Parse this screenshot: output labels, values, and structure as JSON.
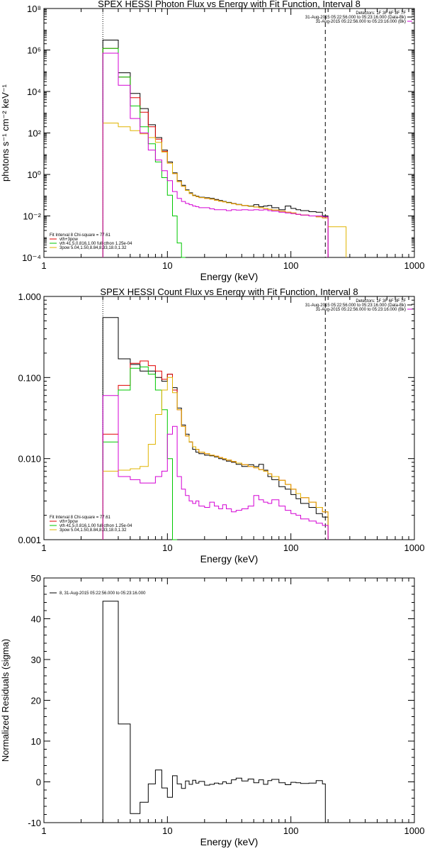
{
  "chart_data": [
    {
      "type": "line",
      "title": "SPEX HESSI Photon Flux vs Energy with Fit Function, Interval 8",
      "xlabel": "Energy (keV)",
      "ylabel": "photons s⁻¹ cm⁻² keV⁻¹",
      "xscale": "log",
      "yscale": "log",
      "xlim": [
        1,
        1000
      ],
      "ylim": [
        0.0001,
        100000000
      ],
      "x_ticks": [
        "1",
        "10",
        "100",
        "1000"
      ],
      "y_ticks": [
        "10⁻⁴",
        "10⁻²",
        "10⁰",
        "10²",
        "10⁴",
        "10⁶",
        "10⁸"
      ],
      "info_lines": [
        {
          "text": "Detectors: 1F 3F 6F 8F 7F",
          "color": "#000000"
        },
        {
          "text": "31-Aug-2015 05:22:56.000 to 05:23:16.000 (Data-Bk)",
          "color": "#000000"
        },
        {
          "text": "31-Aug-2015 05:22:56.000 to 05:23:16.000 (Bk)",
          "color": "#d400d4"
        }
      ],
      "legend": [
        {
          "text": "Fit Interval 8   Chi-square = 77.61",
          "color": "#000000"
        },
        {
          "text": "vth+3pow",
          "color": "#e00000"
        },
        {
          "text": "vth 41.5,0.816,1.00  full cthon 1.25e-04",
          "color": "#00c800"
        },
        {
          "text": "3pow 5.04,1.50,8.84,8.33,18.0,1.32",
          "color": "#e0b400"
        }
      ],
      "vlines": {
        "dotted": 3,
        "dashed": 190
      },
      "edges": [
        3,
        4,
        5,
        6,
        7,
        8,
        9,
        10,
        11,
        12,
        13,
        14,
        15,
        16,
        17,
        18,
        20,
        22,
        24,
        26,
        28,
        30,
        33,
        36,
        40,
        45,
        50,
        55,
        60,
        65,
        70,
        80,
        90,
        100,
        110,
        120,
        140,
        160,
        180,
        200,
        280
      ],
      "series": [
        {
          "name": "Data-Bk",
          "color": "#000000",
          "values": [
            3000000,
            80000,
            8000,
            1500,
            250,
            60,
            15,
            4,
            1.2,
            0.5,
            0.3,
            0.18,
            0.13,
            0.1,
            0.09,
            0.08,
            0.075,
            0.07,
            0.062,
            0.055,
            0.05,
            0.045,
            0.04,
            0.036,
            0.032,
            0.03,
            0.035,
            0.028,
            0.03,
            0.032,
            0.025,
            0.02,
            0.03,
            0.023,
            0.02,
            0.018,
            0.016,
            0.015,
            0.01,
            null
          ]
        },
        {
          "name": "vth+3pow",
          "color": "#e00000",
          "values": [
            1200000,
            50000,
            5000,
            1000,
            200,
            50,
            13,
            3.5,
            1.1,
            0.45,
            0.27,
            0.17,
            0.12,
            0.095,
            0.085,
            0.077,
            0.07,
            0.065,
            0.058,
            0.052,
            0.048,
            0.043,
            0.039,
            0.035,
            0.032,
            0.029,
            0.027,
            0.025,
            0.023,
            0.021,
            0.019,
            0.017,
            0.015,
            0.014,
            0.012,
            0.011,
            0.01,
            0.009,
            0.008,
            null
          ]
        },
        {
          "name": "vth",
          "color": "#00c800",
          "values": [
            1200000,
            50000,
            2000,
            200,
            30,
            4,
            0.7,
            0.1,
            0.01,
            0.0005,
            0.0001,
            null,
            null,
            null,
            null,
            null,
            null,
            null,
            null,
            null,
            null,
            null,
            null,
            null,
            null,
            null,
            null,
            null,
            null,
            null,
            null,
            null,
            null,
            null,
            null,
            null,
            null,
            null,
            null,
            null
          ]
        },
        {
          "name": "3pow",
          "color": "#e0b400",
          "values": [
            300,
            200,
            130,
            90,
            60,
            35,
            12,
            3.5,
            1.1,
            0.45,
            0.27,
            0.17,
            0.12,
            0.095,
            0.085,
            0.077,
            0.07,
            0.065,
            0.058,
            0.052,
            0.048,
            0.043,
            0.039,
            0.035,
            0.032,
            0.029,
            0.027,
            0.025,
            0.023,
            0.021,
            0.019,
            0.017,
            0.015,
            0.014,
            0.012,
            0.011,
            0.01,
            0.009,
            0.008,
            0.003
          ]
        },
        {
          "name": "Bk",
          "color": "#d400d4",
          "values": [
            700000,
            20000,
            500,
            100,
            15,
            5,
            1.5,
            0.5,
            0.15,
            0.07,
            0.05,
            0.04,
            0.035,
            0.03,
            0.028,
            0.025,
            0.025,
            0.022,
            0.02,
            0.02,
            0.02,
            0.018,
            0.02,
            0.019,
            0.02,
            0.019,
            0.02,
            0.019,
            0.02,
            0.018,
            0.017,
            0.015,
            0.014,
            0.013,
            0.012,
            0.011,
            0.01,
            0.01,
            0.009,
            null
          ]
        }
      ]
    },
    {
      "type": "line",
      "title": "SPEX HESSI Count Flux vs Energy with Fit Function, Interval 8",
      "xlabel": "Energy (keV)",
      "ylabel": "",
      "xscale": "log",
      "yscale": "log",
      "xlim": [
        1,
        1000
      ],
      "ylim": [
        0.001,
        1
      ],
      "x_ticks": [
        "1",
        "10",
        "100",
        "1000"
      ],
      "y_ticks": [
        "0.001",
        "0.010",
        "0.100",
        "1.000"
      ],
      "info_lines": [
        {
          "text": "Detectors: 1F 3F 6F 8F 7F",
          "color": "#000000"
        },
        {
          "text": "31-Aug-2015 05:22:56.000 to 05:23:16.000 (Data-Bk)",
          "color": "#000000"
        },
        {
          "text": "31-Aug-2015 05:22:56.000 to 05:23:16.000 (Bk)",
          "color": "#d400d4"
        }
      ],
      "legend": [
        {
          "text": "Fit Interval 8   Chi-square = 77.61",
          "color": "#000000"
        },
        {
          "text": "vth+3pow",
          "color": "#e00000"
        },
        {
          "text": "vth 41.5,0.816,1.00  full cthon 1.25e-04",
          "color": "#00c800"
        },
        {
          "text": "3pow 5.04,1.50,8.84,8.33,18.0,1.32",
          "color": "#e0b400"
        }
      ],
      "vlines": {
        "dotted": 3,
        "dashed": 190
      },
      "edges": [
        3,
        4,
        5,
        6,
        7,
        8,
        9,
        10,
        11,
        12,
        13,
        14,
        15,
        16,
        17,
        18,
        20,
        22,
        24,
        26,
        28,
        30,
        33,
        36,
        40,
        45,
        50,
        55,
        60,
        65,
        70,
        80,
        90,
        100,
        110,
        120,
        140,
        160,
        180,
        200
      ],
      "series": [
        {
          "name": "Data-Bk",
          "color": "#000000",
          "values": [
            0.55,
            0.17,
            0.145,
            0.12,
            0.12,
            0.1,
            0.09,
            0.11,
            0.075,
            0.042,
            0.026,
            0.02,
            0.016,
            0.013,
            0.012,
            0.0115,
            0.011,
            0.0108,
            0.0105,
            0.01,
            0.0097,
            0.0093,
            0.009,
            0.0085,
            0.008,
            0.0084,
            0.008,
            0.0085,
            0.0072,
            0.006,
            0.0055,
            0.0045,
            0.0042,
            0.0036,
            0.0032,
            0.0028,
            0.0025,
            0.0021,
            0.0019
          ]
        },
        {
          "name": "vth+3pow",
          "color": "#e00000",
          "values": [
            0.02,
            0.08,
            0.15,
            0.16,
            0.14,
            0.12,
            0.095,
            0.11,
            0.07,
            0.04,
            0.025,
            0.019,
            0.016,
            0.014,
            0.013,
            0.012,
            0.0115,
            0.011,
            0.0107,
            0.0103,
            0.01,
            0.0096,
            0.0092,
            0.0088,
            0.0084,
            0.008,
            0.0077,
            0.0073,
            0.007,
            0.0065,
            0.006,
            0.0054,
            0.0048,
            0.0042,
            0.0037,
            0.0033,
            0.0029,
            0.0025,
            0.0022
          ]
        },
        {
          "name": "vth",
          "color": "#00c800",
          "values": [
            0.016,
            0.07,
            0.13,
            0.135,
            0.11,
            0.07,
            0.04,
            0.01,
            0.001,
            null,
            null,
            null,
            null,
            null,
            null,
            null,
            null,
            null,
            null,
            null,
            null,
            null,
            null,
            null,
            null,
            null,
            null,
            null,
            null,
            null,
            null,
            null,
            null,
            null,
            null,
            null,
            null,
            null,
            null
          ]
        },
        {
          "name": "3pow",
          "color": "#e0b400",
          "values": [
            0.007,
            0.0072,
            0.0075,
            0.008,
            0.015,
            0.035,
            0.07,
            0.1,
            0.065,
            0.04,
            0.025,
            0.019,
            0.016,
            0.014,
            0.013,
            0.012,
            0.0115,
            0.011,
            0.0107,
            0.0103,
            0.01,
            0.0096,
            0.0092,
            0.0088,
            0.0084,
            0.008,
            0.0077,
            0.0073,
            0.007,
            0.0065,
            0.006,
            0.0054,
            0.0048,
            0.0042,
            0.0037,
            0.0033,
            0.0029,
            0.0025,
            0.0022,
            0.0012
          ]
        },
        {
          "name": "Bk",
          "color": "#d400d4",
          "values": [
            0.06,
            0.006,
            0.0055,
            0.005,
            0.005,
            0.006,
            0.007,
            0.02,
            0.025,
            0.006,
            0.0042,
            0.0035,
            0.003,
            0.0028,
            0.003,
            0.0026,
            0.0025,
            0.0029,
            0.0026,
            0.0024,
            0.0027,
            0.0024,
            0.0022,
            0.0023,
            0.0024,
            0.0026,
            0.0035,
            0.0031,
            0.0029,
            0.0028,
            0.0031,
            0.0026,
            0.0023,
            0.0021,
            0.002,
            0.0018,
            0.0017,
            0.0016,
            0.0015
          ]
        }
      ]
    },
    {
      "type": "line",
      "title": "",
      "xlabel": "Energy (keV)",
      "ylabel": "Normalized Residuals (sigma)",
      "xscale": "log",
      "yscale": "linear",
      "xlim": [
        1,
        1000
      ],
      "ylim": [
        -10,
        50
      ],
      "x_ticks": [
        "1",
        "10",
        "100",
        "1000"
      ],
      "y_ticks": [
        "-10",
        "0",
        "10",
        "20",
        "30",
        "40",
        "50"
      ],
      "legend": [
        {
          "text": "8, 31-Aug-2015 05:22:56.000 to 05:23:16.000",
          "color": "#000000"
        }
      ],
      "edges": [
        3,
        4,
        5,
        6,
        7,
        8,
        9,
        10,
        11,
        12,
        13,
        14,
        15,
        16,
        17,
        18,
        20,
        22,
        24,
        26,
        28,
        30,
        33,
        36,
        40,
        45,
        50,
        55,
        60,
        65,
        70,
        80,
        90,
        100,
        110,
        120,
        140,
        160,
        180,
        190
      ],
      "series": [
        {
          "name": "8, 31-Aug-2015 05:22:56.000 to 05:23:16.000",
          "color": "#000000",
          "values": [
            44.3,
            14.2,
            -7.8,
            -5,
            -0.5,
            2.9,
            -1.5,
            -3.8,
            1.5,
            -0.5,
            -1.6,
            0.2,
            -0.6,
            0.4,
            -0.3,
            0.1,
            -0.8,
            -0.6,
            -0.3,
            -0.5,
            0,
            -0.4,
            0.5,
            0.9,
            0.2,
            0.7,
            -0.2,
            0.5,
            -0.6,
            0.3,
            0.6,
            -0.2,
            -0.7,
            -0.1,
            -0.2,
            -0.4,
            -0.3,
            0.3,
            -0.5
          ]
        }
      ]
    }
  ]
}
